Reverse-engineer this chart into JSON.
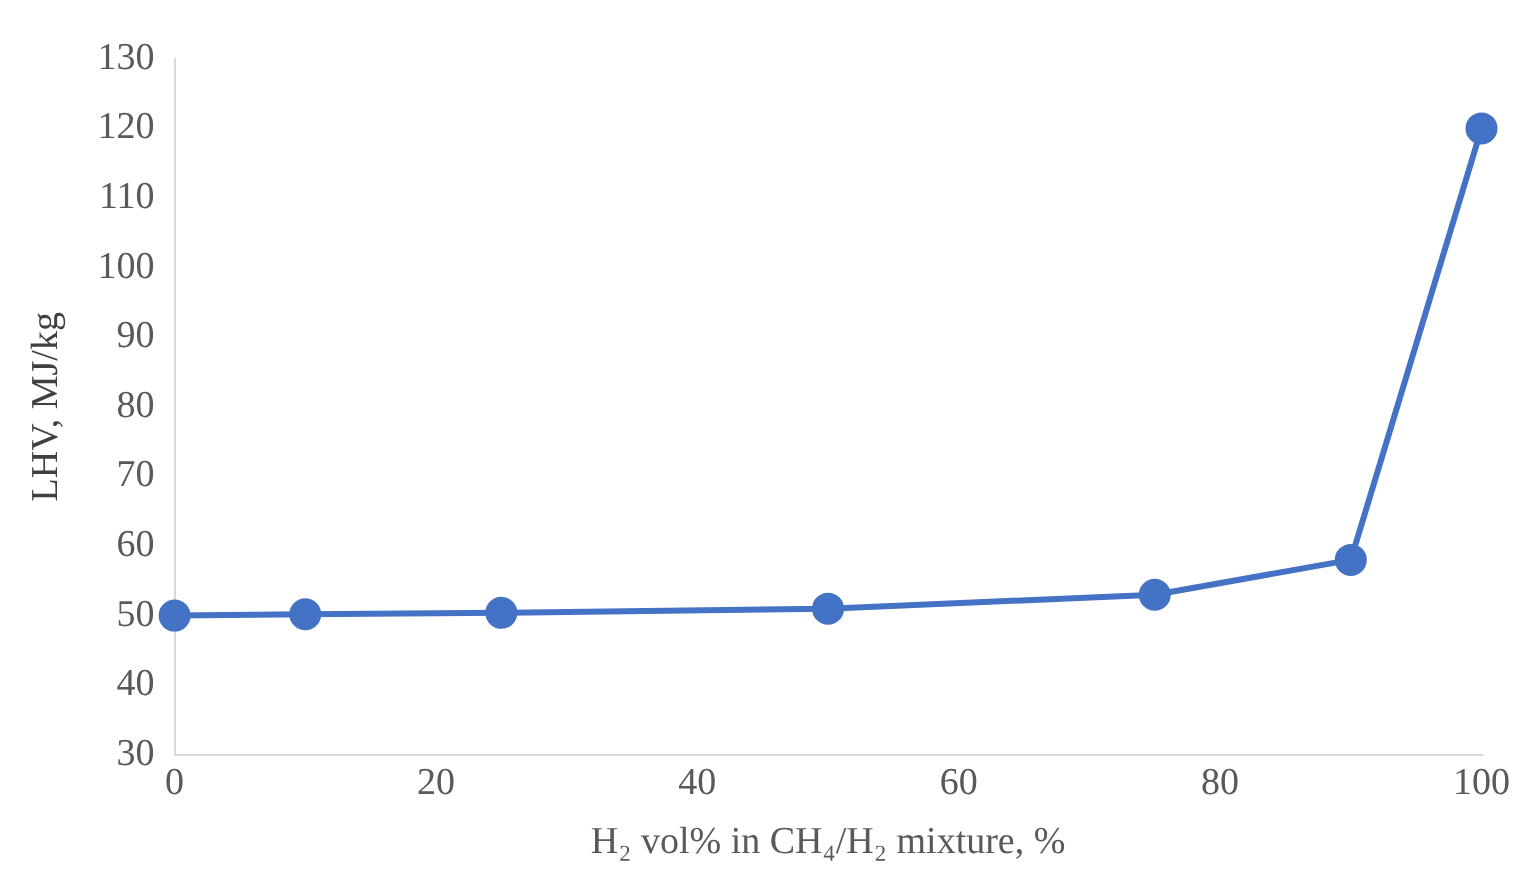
{
  "chart_data": {
    "type": "line",
    "xlabel": "H₂ vol% in CH₄/H₂ mixture, %",
    "ylabel": "LHV, MJ/kg",
    "x": [
      0,
      10,
      25,
      50,
      75,
      90,
      100
    ],
    "series": [
      {
        "color": "#4472c4",
        "values": [
          50,
          50.2,
          50.4,
          51,
          53,
          58,
          120
        ]
      }
    ],
    "xlim": [
      0,
      100
    ],
    "xticks": [
      0,
      20,
      40,
      60,
      80,
      100
    ],
    "ylim": [
      30,
      130
    ],
    "yticks": [
      30,
      40,
      50,
      60,
      70,
      80,
      90,
      100,
      110,
      120,
      130
    ],
    "grid": false,
    "legend": false,
    "marker": "circle",
    "line_style": "solid"
  }
}
